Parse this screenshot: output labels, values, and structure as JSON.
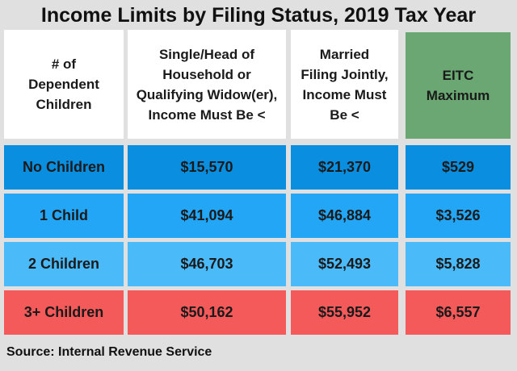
{
  "title": "Income Limits by Filing Status, 2019 Tax Year",
  "headers": {
    "dependents": "# of Dependent Children",
    "single": "Single/Head of Household or Qualifying Widow(er), Income Must Be <",
    "married": "Married Filing Jointly, Income Must Be <",
    "eitc": "EITC Maximum"
  },
  "rows": [
    {
      "label": "No Children",
      "single": "$15,570",
      "married": "$21,370",
      "eitc": "$529",
      "color": "#0a8fe0"
    },
    {
      "label": "1 Child",
      "single": "$41,094",
      "married": "$46,884",
      "eitc": "$3,526",
      "color": "#23a6f5"
    },
    {
      "label": "2 Children",
      "single": "$46,703",
      "married": "$52,493",
      "eitc": "$5,828",
      "color": "#4bbaf9"
    },
    {
      "label": "3+ Children",
      "single": "$50,162",
      "married": "$55,952",
      "eitc": "$6,557",
      "color": "#f55a5a"
    }
  ],
  "colors": {
    "header_bg": "#ffffff",
    "eitc_header_bg": "#6aa772",
    "page_bg": "#e0e0e0"
  },
  "source": "Source: Internal Revenue Service"
}
